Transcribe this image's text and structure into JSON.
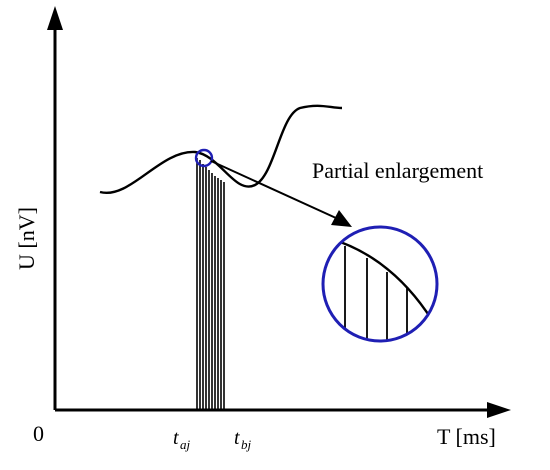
{
  "axes": {
    "y_label": "U [nV]",
    "x_label": "T [ms]",
    "origin_label": "0"
  },
  "markers": {
    "ta": {
      "base": "t",
      "sub": "aj"
    },
    "tb": {
      "base": "t",
      "sub": "bj"
    }
  },
  "annotation": {
    "text": "Partial enlargement"
  },
  "colors": {
    "line": "#000000",
    "highlight": "#1f1fb4"
  }
}
